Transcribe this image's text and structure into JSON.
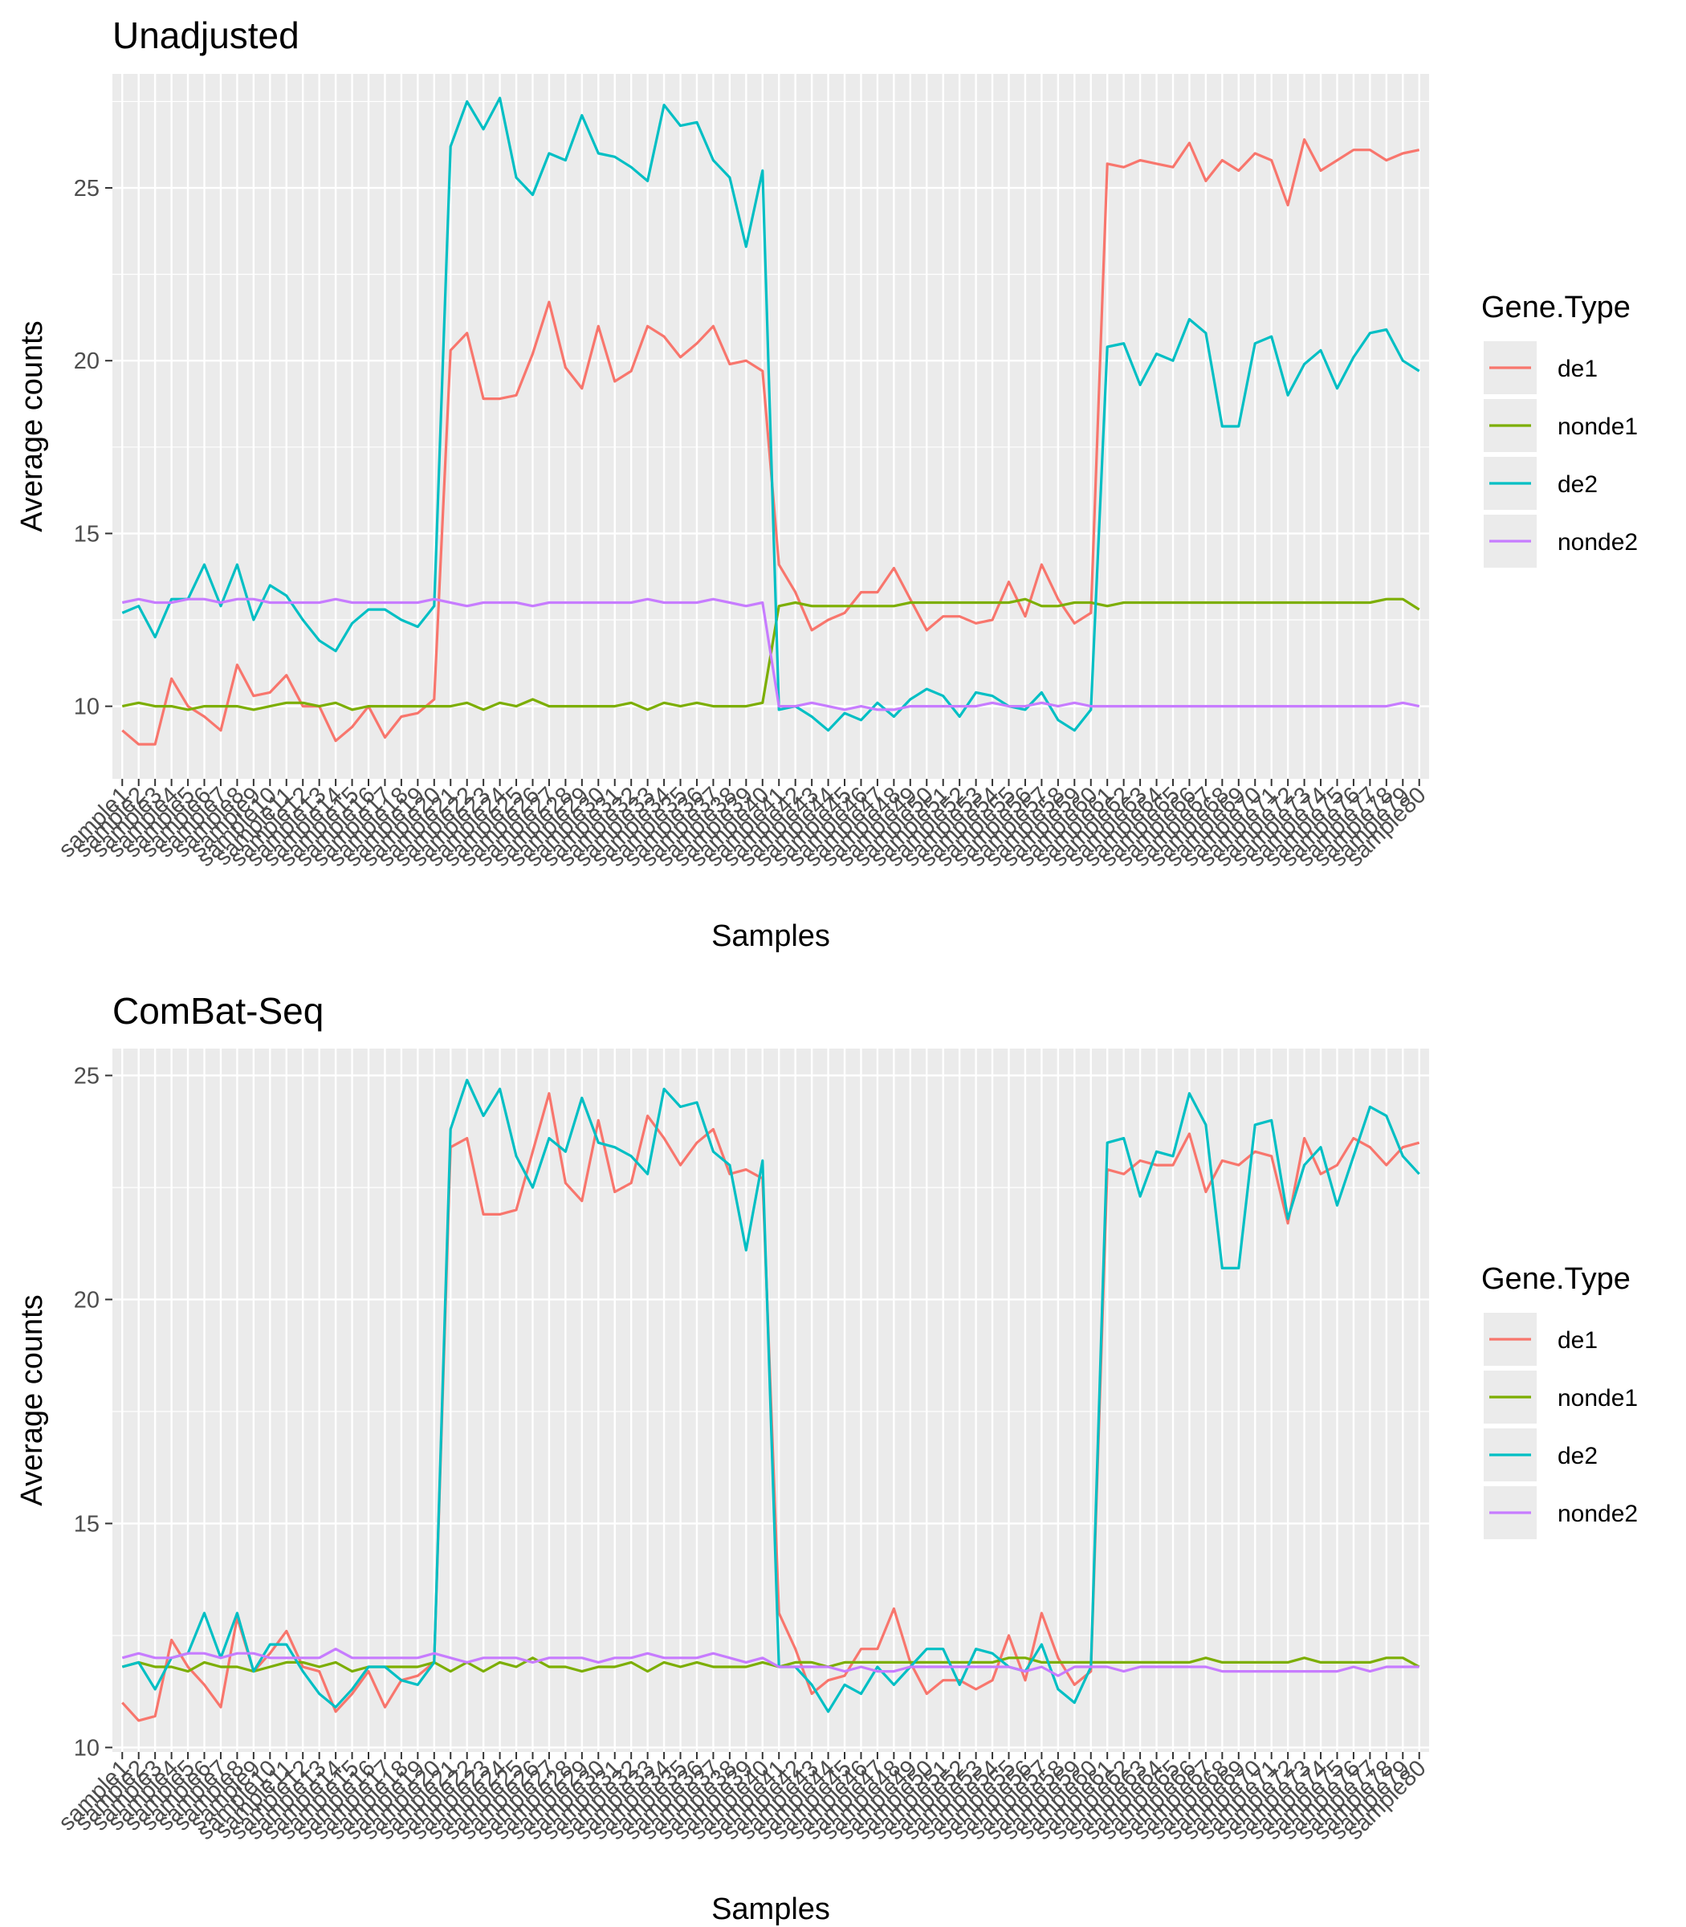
{
  "chart_data": [
    {
      "type": "line",
      "title": "Unadjusted",
      "xlabel": "Samples",
      "ylabel": "Average counts",
      "ylim": [
        7.9,
        28.3
      ],
      "yticks": [
        10,
        15,
        20,
        25
      ],
      "grid": true,
      "legend": {
        "title": "Gene.Type",
        "placement": "right",
        "entries": [
          "de1",
          "nonde1",
          "de2",
          "nonde2"
        ]
      },
      "series": [
        {
          "name": "de1",
          "color": "#F8766D",
          "values": [
            9.3,
            8.9,
            8.9,
            10.8,
            10.0,
            9.7,
            9.3,
            11.2,
            10.3,
            10.4,
            10.9,
            10.0,
            10.0,
            9.0,
            9.4,
            10.0,
            9.1,
            9.7,
            9.8,
            10.2,
            20.3,
            20.8,
            18.9,
            18.9,
            19.0,
            20.2,
            21.7,
            19.8,
            19.2,
            21.0,
            19.4,
            19.7,
            21.0,
            20.7,
            20.1,
            20.5,
            21.0,
            19.9,
            20.0,
            19.7,
            14.1,
            13.3,
            12.2,
            12.5,
            12.7,
            13.3,
            13.3,
            14.0,
            13.1,
            12.2,
            12.6,
            12.6,
            12.4,
            12.5,
            13.6,
            12.6,
            14.1,
            13.1,
            12.4,
            12.7,
            25.7,
            25.6,
            25.8,
            25.7,
            25.6,
            26.3,
            25.2,
            25.8,
            25.5,
            26.0,
            25.8,
            24.5,
            26.4,
            25.5,
            25.8,
            26.1,
            26.1,
            25.8,
            26.0,
            26.1
          ]
        },
        {
          "name": "nonde1",
          "color": "#7CAE00",
          "values": [
            10.0,
            10.1,
            10.0,
            10.0,
            9.9,
            10.0,
            10.0,
            10.0,
            9.9,
            10.0,
            10.1,
            10.1,
            10.0,
            10.1,
            9.9,
            10.0,
            10.0,
            10.0,
            10.0,
            10.0,
            10.0,
            10.1,
            9.9,
            10.1,
            10.0,
            10.2,
            10.0,
            10.0,
            10.0,
            10.0,
            10.0,
            10.1,
            9.9,
            10.1,
            10.0,
            10.1,
            10.0,
            10.0,
            10.0,
            10.1,
            12.9,
            13.0,
            12.9,
            12.9,
            12.9,
            12.9,
            12.9,
            12.9,
            13.0,
            13.0,
            13.0,
            13.0,
            13.0,
            13.0,
            13.0,
            13.1,
            12.9,
            12.9,
            13.0,
            13.0,
            12.9,
            13.0,
            13.0,
            13.0,
            13.0,
            13.0,
            13.0,
            13.0,
            13.0,
            13.0,
            13.0,
            13.0,
            13.0,
            13.0,
            13.0,
            13.0,
            13.0,
            13.1,
            13.1,
            12.8
          ]
        },
        {
          "name": "de2",
          "color": "#00BFC4",
          "values": [
            12.7,
            12.9,
            12.0,
            13.1,
            13.1,
            14.1,
            12.9,
            14.1,
            12.5,
            13.5,
            13.2,
            12.5,
            11.9,
            11.6,
            12.4,
            12.8,
            12.8,
            12.5,
            12.3,
            12.9,
            26.2,
            27.5,
            26.7,
            27.6,
            25.3,
            24.8,
            26.0,
            25.8,
            27.1,
            26.0,
            25.9,
            25.6,
            25.2,
            27.4,
            26.8,
            26.9,
            25.8,
            25.3,
            23.3,
            25.5,
            9.9,
            10.0,
            9.7,
            9.3,
            9.8,
            9.6,
            10.1,
            9.7,
            10.2,
            10.5,
            10.3,
            9.7,
            10.4,
            10.3,
            10.0,
            9.9,
            10.4,
            9.6,
            9.3,
            9.9,
            20.4,
            20.5,
            19.3,
            20.2,
            20.0,
            21.2,
            20.8,
            18.1,
            18.1,
            20.5,
            20.7,
            19.0,
            19.9,
            20.3,
            19.2,
            20.1,
            20.8,
            20.9,
            20.0,
            19.7
          ]
        },
        {
          "name": "nonde2",
          "color": "#C77CFF",
          "values": [
            13.0,
            13.1,
            13.0,
            13.0,
            13.1,
            13.1,
            13.0,
            13.1,
            13.1,
            13.0,
            13.0,
            13.0,
            13.0,
            13.1,
            13.0,
            13.0,
            13.0,
            13.0,
            13.0,
            13.1,
            13.0,
            12.9,
            13.0,
            13.0,
            13.0,
            12.9,
            13.0,
            13.0,
            13.0,
            13.0,
            13.0,
            13.0,
            13.1,
            13.0,
            13.0,
            13.0,
            13.1,
            13.0,
            12.9,
            13.0,
            10.0,
            10.0,
            10.1,
            10.0,
            9.9,
            10.0,
            9.9,
            9.9,
            10.0,
            10.0,
            10.0,
            10.0,
            10.0,
            10.1,
            10.0,
            10.0,
            10.1,
            10.0,
            10.1,
            10.0,
            10.0,
            10.0,
            10.0,
            10.0,
            10.0,
            10.0,
            10.0,
            10.0,
            10.0,
            10.0,
            10.0,
            10.0,
            10.0,
            10.0,
            10.0,
            10.0,
            10.0,
            10.0,
            10.1,
            10.0
          ]
        }
      ]
    },
    {
      "type": "line",
      "title": "ComBat-Seq",
      "xlabel": "Samples",
      "ylabel": "Average counts",
      "ylim": [
        9.9,
        25.6
      ],
      "yticks": [
        10,
        15,
        20,
        25
      ],
      "grid": true,
      "legend": {
        "title": "Gene.Type",
        "placement": "right",
        "entries": [
          "de1",
          "nonde1",
          "de2",
          "nonde2"
        ]
      },
      "series": [
        {
          "name": "de1",
          "color": "#F8766D",
          "values": [
            11.0,
            10.6,
            10.7,
            12.4,
            11.8,
            11.4,
            10.9,
            12.9,
            11.7,
            12.1,
            12.6,
            11.8,
            11.7,
            10.8,
            11.2,
            11.7,
            10.9,
            11.5,
            11.6,
            11.9,
            23.4,
            23.6,
            21.9,
            21.9,
            22.0,
            23.3,
            24.6,
            22.6,
            22.2,
            24.0,
            22.4,
            22.6,
            24.1,
            23.6,
            23.0,
            23.5,
            23.8,
            22.8,
            22.9,
            22.7,
            13.0,
            12.2,
            11.2,
            11.5,
            11.6,
            12.2,
            12.2,
            13.1,
            11.9,
            11.2,
            11.5,
            11.5,
            11.3,
            11.5,
            12.5,
            11.5,
            13.0,
            12.0,
            11.4,
            11.7,
            22.9,
            22.8,
            23.1,
            23.0,
            23.0,
            23.7,
            22.4,
            23.1,
            23.0,
            23.3,
            23.2,
            21.7,
            23.6,
            22.8,
            23.0,
            23.6,
            23.4,
            23.0,
            23.4,
            23.5
          ]
        },
        {
          "name": "nonde1",
          "color": "#7CAE00",
          "values": [
            11.8,
            11.9,
            11.8,
            11.8,
            11.7,
            11.9,
            11.8,
            11.8,
            11.7,
            11.8,
            11.9,
            11.9,
            11.8,
            11.9,
            11.7,
            11.8,
            11.8,
            11.8,
            11.8,
            11.9,
            11.7,
            11.9,
            11.7,
            11.9,
            11.8,
            12.0,
            11.8,
            11.8,
            11.7,
            11.8,
            11.8,
            11.9,
            11.7,
            11.9,
            11.8,
            11.9,
            11.8,
            11.8,
            11.8,
            11.9,
            11.8,
            11.9,
            11.9,
            11.8,
            11.9,
            11.9,
            11.9,
            11.9,
            11.9,
            11.9,
            11.9,
            11.9,
            11.9,
            11.9,
            12.0,
            12.0,
            11.9,
            11.9,
            11.9,
            11.9,
            11.9,
            11.9,
            11.9,
            11.9,
            11.9,
            11.9,
            12.0,
            11.9,
            11.9,
            11.9,
            11.9,
            11.9,
            12.0,
            11.9,
            11.9,
            11.9,
            11.9,
            12.0,
            12.0,
            11.8
          ]
        },
        {
          "name": "de2",
          "color": "#00BFC4",
          "values": [
            11.8,
            11.9,
            11.3,
            12.0,
            12.1,
            13.0,
            12.0,
            13.0,
            11.7,
            12.3,
            12.3,
            11.7,
            11.2,
            10.9,
            11.3,
            11.8,
            11.8,
            11.5,
            11.4,
            11.9,
            23.8,
            24.9,
            24.1,
            24.7,
            23.2,
            22.5,
            23.6,
            23.3,
            24.5,
            23.5,
            23.4,
            23.2,
            22.8,
            24.7,
            24.3,
            24.4,
            23.3,
            23.0,
            21.1,
            23.1,
            11.8,
            11.8,
            11.4,
            10.8,
            11.4,
            11.2,
            11.8,
            11.4,
            11.8,
            12.2,
            12.2,
            11.4,
            12.2,
            12.1,
            11.8,
            11.7,
            12.3,
            11.3,
            11.0,
            11.8,
            23.5,
            23.6,
            22.3,
            23.3,
            23.2,
            24.6,
            23.9,
            20.7,
            20.7,
            23.9,
            24.0,
            21.8,
            23.0,
            23.4,
            22.1,
            23.2,
            24.3,
            24.1,
            23.2,
            22.8
          ]
        },
        {
          "name": "nonde2",
          "color": "#C77CFF",
          "values": [
            12.0,
            12.1,
            12.0,
            12.0,
            12.1,
            12.1,
            12.0,
            12.1,
            12.1,
            12.0,
            12.0,
            12.0,
            12.0,
            12.2,
            12.0,
            12.0,
            12.0,
            12.0,
            12.0,
            12.1,
            12.0,
            11.9,
            12.0,
            12.0,
            12.0,
            11.9,
            12.0,
            12.0,
            12.0,
            11.9,
            12.0,
            12.0,
            12.1,
            12.0,
            12.0,
            12.0,
            12.1,
            12.0,
            11.9,
            12.0,
            11.8,
            11.8,
            11.8,
            11.8,
            11.7,
            11.8,
            11.7,
            11.7,
            11.8,
            11.8,
            11.8,
            11.8,
            11.8,
            11.8,
            11.8,
            11.7,
            11.8,
            11.6,
            11.8,
            11.8,
            11.8,
            11.7,
            11.8,
            11.8,
            11.8,
            11.8,
            11.8,
            11.7,
            11.7,
            11.7,
            11.7,
            11.7,
            11.7,
            11.7,
            11.7,
            11.8,
            11.7,
            11.8,
            11.8,
            11.8
          ]
        }
      ]
    }
  ]
}
